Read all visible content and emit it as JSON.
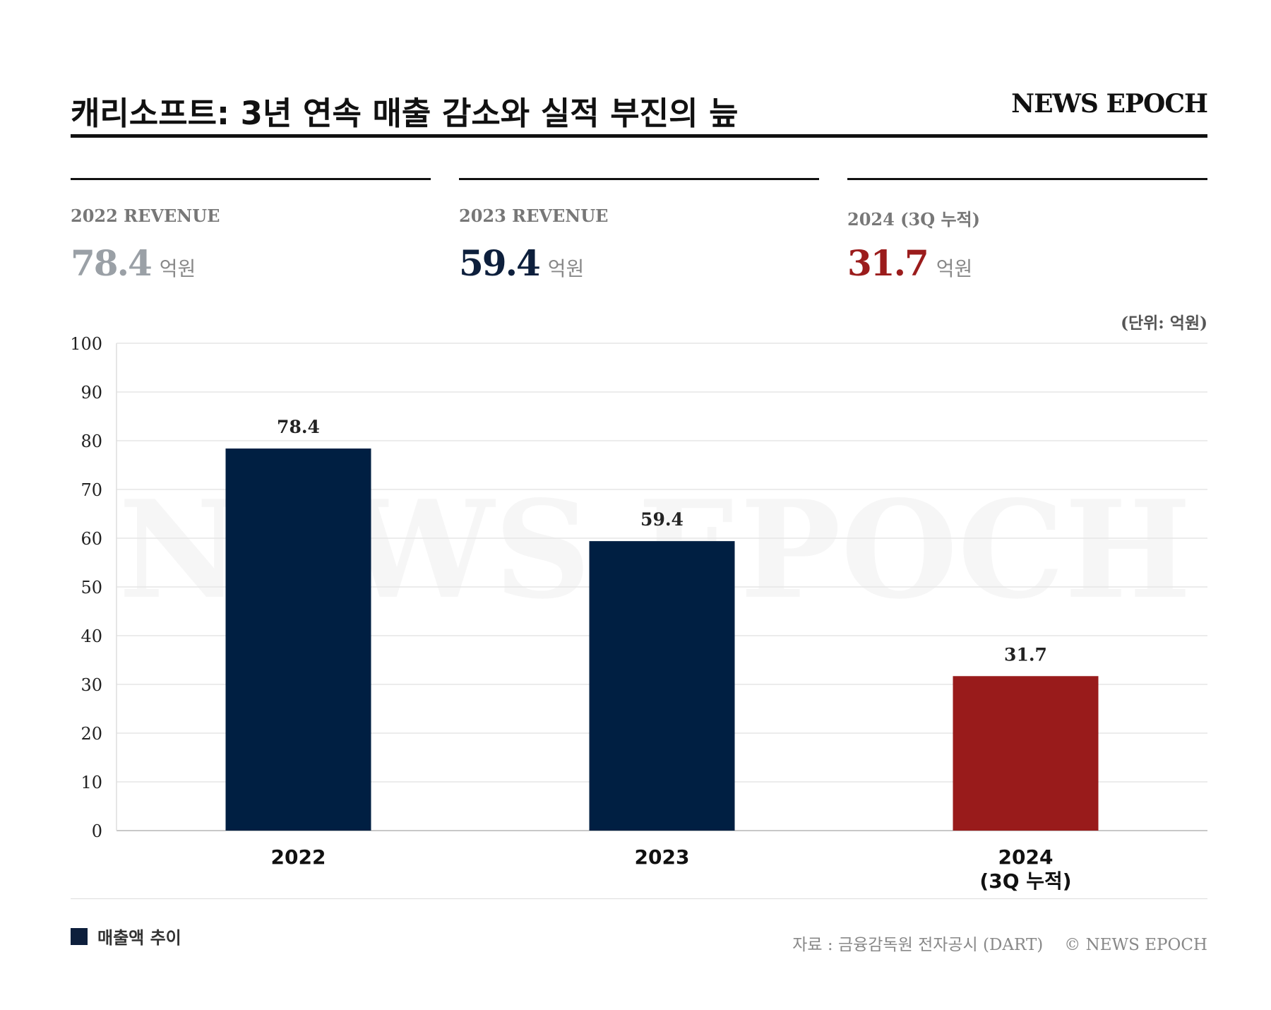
{
  "header": {
    "title": "캐리소프트: 3년 연속 매출 감소와 실적 부진의 늪",
    "brand": "NEWS EPOCH"
  },
  "kpis": [
    {
      "label": "2022 REVENUE",
      "value": "78.4",
      "unit": "억원",
      "color": "#9aa0a6"
    },
    {
      "label": "2023 REVENUE",
      "value": "59.4",
      "unit": "억원",
      "color": "#0d1f3c"
    },
    {
      "label": "2024 (3Q 누적)",
      "value": "31.7",
      "unit": "억원",
      "color": "#9b1c1c"
    }
  ],
  "unit_note": "(단위: 억원)",
  "chart_data": {
    "type": "bar",
    "title": "",
    "xlabel": "",
    "ylabel": "",
    "categories": [
      "2022",
      "2023",
      "2024\n(3Q 누적)"
    ],
    "values": [
      78.4,
      59.4,
      31.7
    ],
    "data_labels": [
      "78.4",
      "59.4",
      "31.7"
    ],
    "bar_colors": [
      "#001f42",
      "#001f42",
      "#991b1b"
    ],
    "ylim": [
      0,
      100
    ],
    "yticks": [
      0,
      10,
      20,
      30,
      40,
      50,
      60,
      70,
      80,
      90,
      100
    ],
    "grid": true,
    "watermark": "NEWS EPOCH",
    "legend": [
      {
        "name": "매출액 추이",
        "color": "#0d1f3c"
      }
    ],
    "legend_position": "bottom-left"
  },
  "footer": {
    "source": "자료 : 금융감독원 전자공시 (DART)",
    "copyright": "© NEWS EPOCH"
  }
}
